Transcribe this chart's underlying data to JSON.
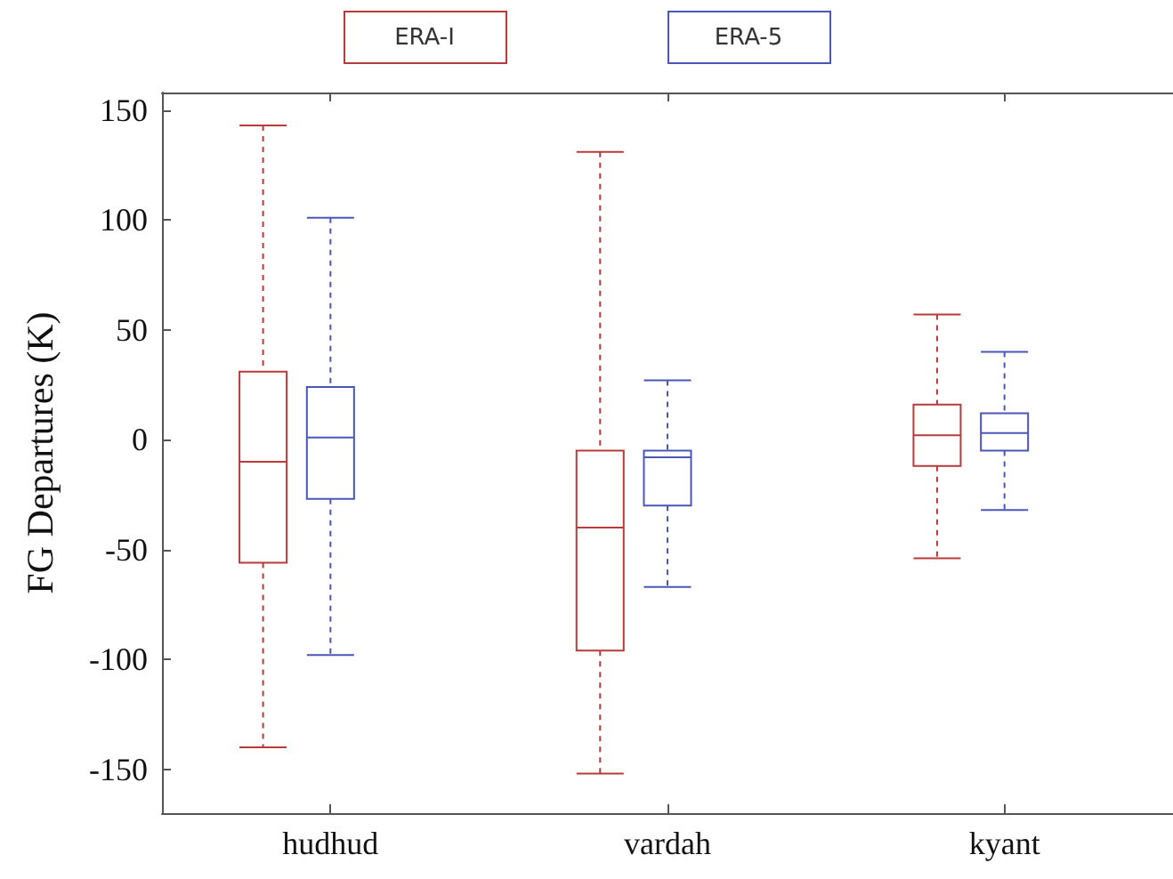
{
  "chart_data": {
    "type": "box",
    "ylabel": "FG Departures (K)",
    "categories": [
      "hudhud",
      "vardah",
      "kyant"
    ],
    "ylim": [
      -170,
      158
    ],
    "yticks": [
      -150,
      -100,
      -50,
      0,
      50,
      100,
      150
    ],
    "legend": "top",
    "grid": false,
    "line_style": "dashed",
    "series": [
      {
        "name": "ERA-I",
        "color": "#b83a3a",
        "boxes": [
          {
            "low": -140,
            "q1": -56,
            "median": -10,
            "q3": 31,
            "high": 143
          },
          {
            "low": -152,
            "q1": -96,
            "median": -40,
            "q3": -5,
            "high": 131
          },
          {
            "low": -54,
            "q1": -12,
            "median": 2,
            "q3": 16,
            "high": 57
          }
        ]
      },
      {
        "name": "ERA-5",
        "color": "#4a56b8",
        "boxes": [
          {
            "low": -98,
            "q1": -27,
            "median": 1,
            "q3": 24,
            "high": 101
          },
          {
            "low": -67,
            "q1": -30,
            "median": -8,
            "q3": -5,
            "high": 27
          },
          {
            "low": -32,
            "q1": -5,
            "median": 3,
            "q3": 12,
            "high": 40
          }
        ]
      }
    ]
  }
}
